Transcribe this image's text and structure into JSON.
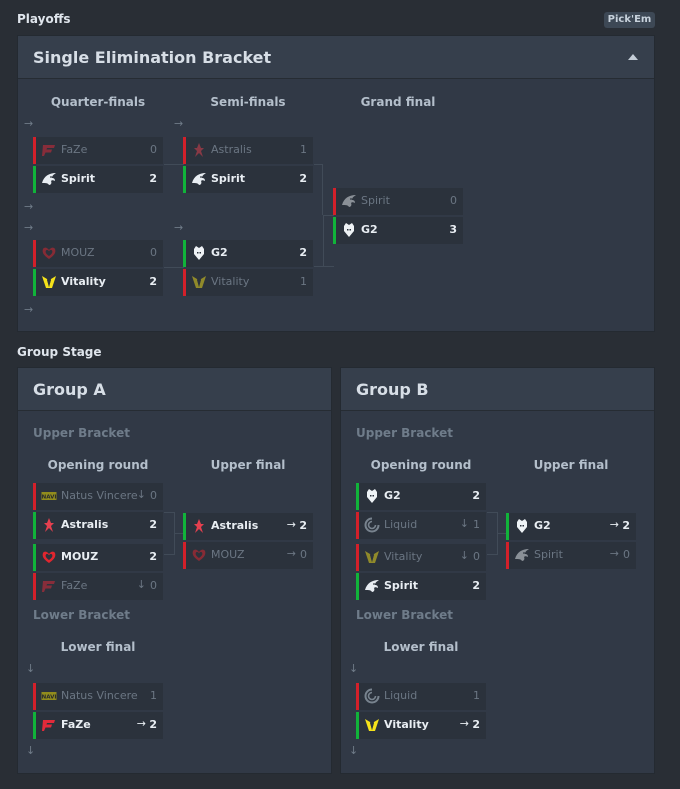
{
  "playoffs": {
    "section_title": "Playoffs",
    "pickem_label": "Pick'Em",
    "panel_title": "Single Elimination Bracket",
    "columns": [
      "Quarter-finals",
      "Semi-finals",
      "Grand final"
    ],
    "arrow_glyph": "→",
    "qf": [
      {
        "top": {
          "name": "FaZe",
          "score": "0",
          "logo": "faze-logo",
          "result": "lose"
        },
        "bot": {
          "name": "Spirit",
          "score": "2",
          "logo": "spirit-logo",
          "result": "win"
        }
      },
      {
        "top": {
          "name": "MOUZ",
          "score": "0",
          "logo": "mouz-logo",
          "result": "lose"
        },
        "bot": {
          "name": "Vitality",
          "score": "2",
          "logo": "vitality-logo",
          "result": "win"
        }
      }
    ],
    "sf": [
      {
        "top": {
          "name": "Astralis",
          "score": "1",
          "logo": "astralis-logo",
          "result": "lose"
        },
        "bot": {
          "name": "Spirit",
          "score": "2",
          "logo": "spirit-logo",
          "result": "win"
        }
      },
      {
        "top": {
          "name": "G2",
          "score": "2",
          "logo": "g2-logo",
          "result": "win"
        },
        "bot": {
          "name": "Vitality",
          "score": "1",
          "logo": "vitality-logo",
          "result": "lose"
        }
      }
    ],
    "gf": {
      "top": {
        "name": "Spirit",
        "score": "0",
        "logo": "spirit-logo",
        "result": "lose"
      },
      "bot": {
        "name": "G2",
        "score": "3",
        "logo": "g2-logo",
        "result": "win"
      }
    }
  },
  "group_stage": {
    "section_title": "Group Stage",
    "groups": [
      {
        "title": "Group A",
        "upper_label": "Upper Bracket",
        "opening_label": "Opening round",
        "upper_final_label": "Upper final",
        "lower_label": "Lower Bracket",
        "lower_final_label": "Lower final",
        "down_glyph": "↓",
        "opening": [
          {
            "top": {
              "name": "Natus Vincere",
              "score": "0",
              "status": "↓",
              "logo": "navi-logo",
              "result": "lose"
            },
            "bot": {
              "name": "Astralis",
              "score": "2",
              "status": "",
              "logo": "astralis-logo",
              "result": "win"
            }
          },
          {
            "top": {
              "name": "MOUZ",
              "score": "2",
              "status": "",
              "logo": "mouz-logo",
              "result": "win"
            },
            "bot": {
              "name": "FaZe",
              "score": "0",
              "status": "↓",
              "logo": "faze-logo",
              "result": "lose"
            }
          }
        ],
        "upper_final": {
          "top": {
            "name": "Astralis",
            "score": "2",
            "status": "→",
            "logo": "astralis-logo",
            "result": "win"
          },
          "bot": {
            "name": "MOUZ",
            "score": "0",
            "status": "→",
            "logo": "mouz-logo",
            "result": "lose"
          }
        },
        "lower_final": {
          "top": {
            "name": "Natus Vincere",
            "score": "1",
            "status": "",
            "logo": "navi-logo",
            "result": "lose"
          },
          "bot": {
            "name": "FaZe",
            "score": "2",
            "status": "→",
            "logo": "faze-logo",
            "result": "win"
          }
        }
      },
      {
        "title": "Group B",
        "upper_label": "Upper Bracket",
        "opening_label": "Opening round",
        "upper_final_label": "Upper final",
        "lower_label": "Lower Bracket",
        "lower_final_label": "Lower final",
        "down_glyph": "↓",
        "opening": [
          {
            "top": {
              "name": "G2",
              "score": "2",
              "status": "",
              "logo": "g2-logo",
              "result": "win"
            },
            "bot": {
              "name": "Liquid",
              "score": "1",
              "status": "↓",
              "logo": "liquid-logo",
              "result": "lose"
            }
          },
          {
            "top": {
              "name": "Vitality",
              "score": "0",
              "status": "↓",
              "logo": "vitality-logo",
              "result": "lose"
            },
            "bot": {
              "name": "Spirit",
              "score": "2",
              "status": "",
              "logo": "spirit-logo",
              "result": "win"
            }
          }
        ],
        "upper_final": {
          "top": {
            "name": "G2",
            "score": "2",
            "status": "→",
            "logo": "g2-logo",
            "result": "win"
          },
          "bot": {
            "name": "Spirit",
            "score": "0",
            "status": "→",
            "logo": "spirit-logo",
            "result": "lose"
          }
        },
        "lower_final": {
          "top": {
            "name": "Liquid",
            "score": "1",
            "status": "",
            "logo": "liquid-logo",
            "result": "lose"
          },
          "bot": {
            "name": "Vitality",
            "score": "2",
            "status": "→",
            "logo": "vitality-logo",
            "result": "win"
          }
        }
      }
    ]
  },
  "colors": {
    "win": "#11b33a",
    "lose": "#d3202a",
    "background": "#292e35",
    "panel": "#313946"
  }
}
